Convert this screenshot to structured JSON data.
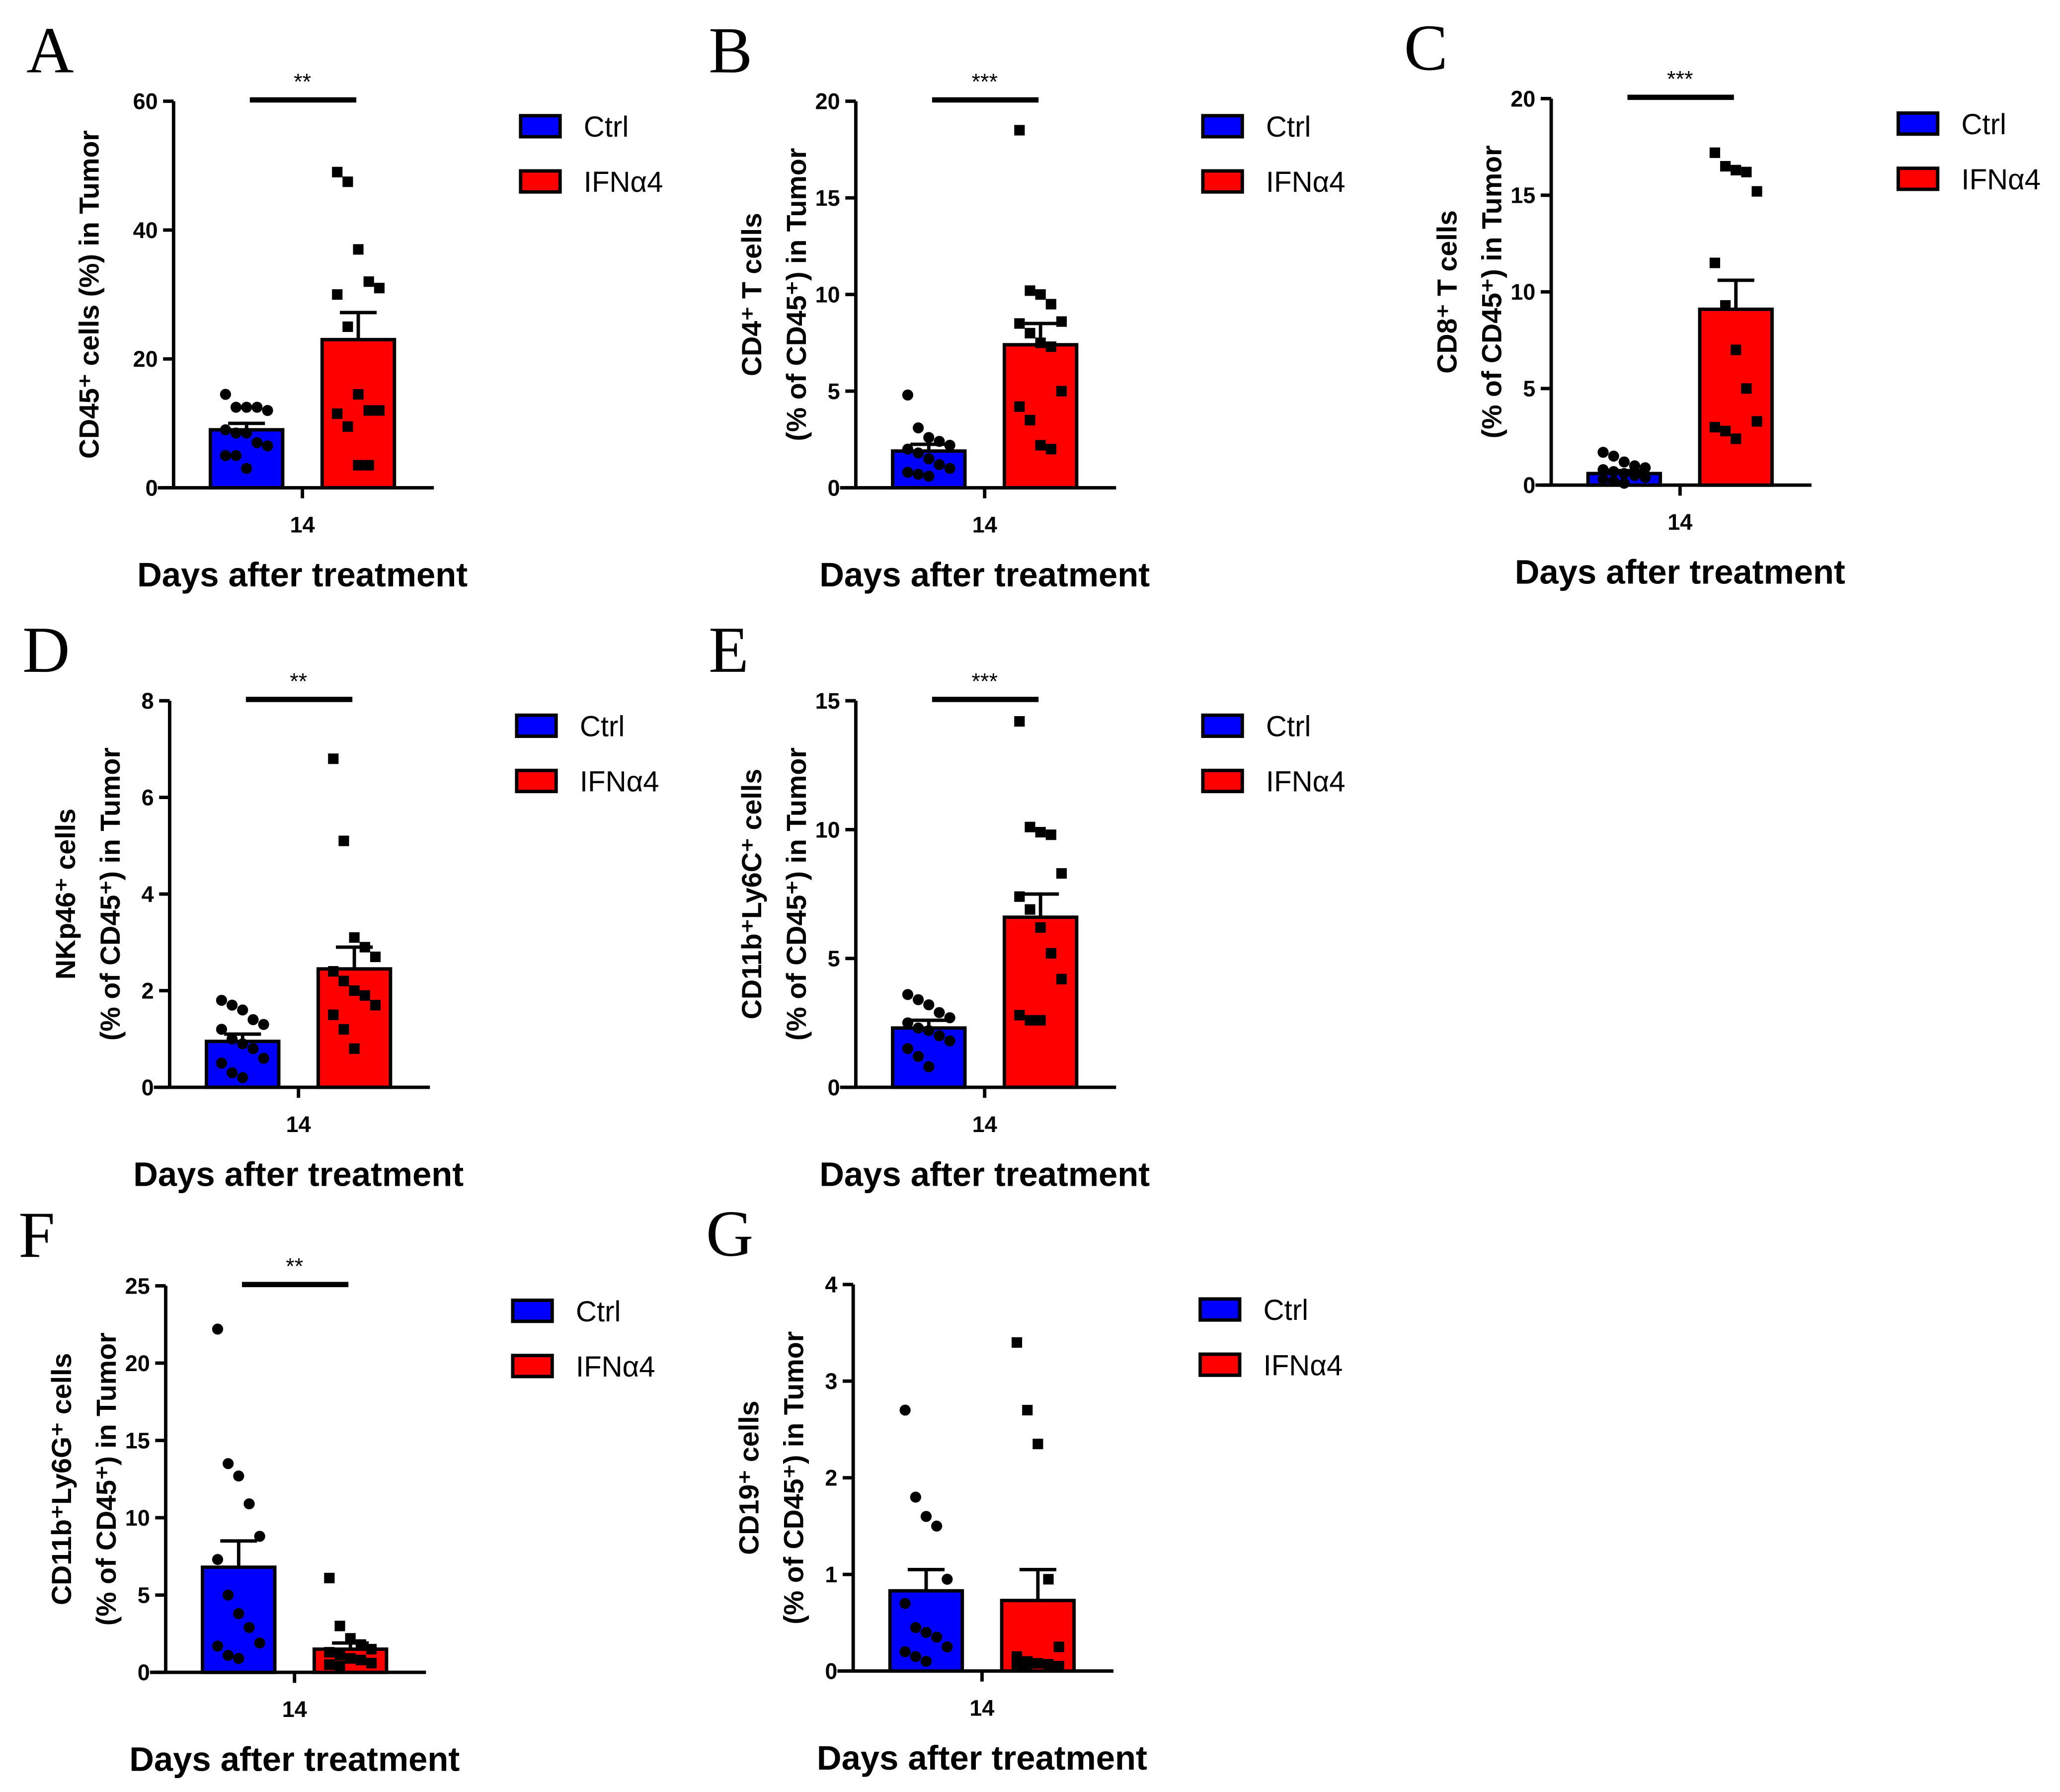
{
  "chart_data": [
    {
      "type": "bar",
      "panel": "A",
      "ylabel_lines": [
        "CD45⁺ cells (%) in Tumor"
      ],
      "xlabel": "Days after treatment",
      "categories": [
        "14"
      ],
      "ylim": [
        0,
        60
      ],
      "yticks": [
        0,
        20,
        40,
        60
      ],
      "significance": "**",
      "legend": [
        "Ctrl",
        "IFNα4"
      ],
      "legend_position": "right",
      "series": [
        {
          "name": "Ctrl",
          "color": "#0000ff",
          "mean": 9,
          "sem": 1,
          "points": [
            14.5,
            12.5,
            12.5,
            12.5,
            12,
            9,
            8.5,
            8.5,
            7,
            6.5,
            5,
            5,
            3
          ]
        },
        {
          "name": "IFNα4",
          "color": "#ff0000",
          "mean": 23,
          "sem": 4.2,
          "points": [
            49,
            47.5,
            37,
            32,
            31,
            30,
            25,
            14.5,
            12,
            12,
            11.5,
            9.5,
            3.5,
            3.5
          ]
        }
      ]
    },
    {
      "type": "bar",
      "panel": "B",
      "ylabel_lines": [
        "CD4⁺ T cells",
        "(% of CD45⁺) in Tumor"
      ],
      "xlabel": "Days after treatment",
      "categories": [
        "14"
      ],
      "ylim": [
        0,
        20
      ],
      "yticks": [
        0,
        5,
        10,
        15,
        20
      ],
      "significance": "***",
      "legend": [
        "Ctrl",
        "IFNα4"
      ],
      "legend_position": "right",
      "series": [
        {
          "name": "Ctrl",
          "color": "#0000ff",
          "mean": 1.9,
          "sem": 0.35,
          "points": [
            4.8,
            3.1,
            2.6,
            2.4,
            2.2,
            2,
            1.8,
            1.5,
            1.2,
            1,
            0.8,
            0.7,
            0.6
          ]
        },
        {
          "name": "IFNα4",
          "color": "#ff0000",
          "mean": 7.4,
          "sem": 1.1,
          "points": [
            18.5,
            10.2,
            10,
            9.5,
            8.6,
            8.5,
            8,
            7.5,
            7.3,
            5,
            4.2,
            3.5,
            2.2,
            2
          ]
        }
      ]
    },
    {
      "type": "bar",
      "panel": "C",
      "ylabel_lines": [
        "CD8⁺ T cells",
        "(% of CD45⁺) in Tumor"
      ],
      "xlabel": "Days after treatment",
      "categories": [
        "14"
      ],
      "ylim": [
        0,
        20
      ],
      "yticks": [
        0,
        5,
        10,
        15,
        20
      ],
      "significance": "***",
      "legend": [
        "Ctrl",
        "IFNα4"
      ],
      "legend_position": "right",
      "series": [
        {
          "name": "Ctrl",
          "color": "#0000ff",
          "mean": 0.6,
          "sem": 0.15,
          "points": [
            1.7,
            1.5,
            1.2,
            1,
            0.9,
            0.8,
            0.7,
            0.6,
            0.5,
            0.4,
            0.3,
            0.2,
            0.1
          ]
        },
        {
          "name": "IFNα4",
          "color": "#ff0000",
          "mean": 9.1,
          "sem": 1.5,
          "points": [
            17.2,
            16.5,
            16.3,
            16.2,
            15.2,
            11.5,
            9.3,
            7,
            5,
            3.3,
            3,
            2.8,
            2.4
          ]
        }
      ]
    },
    {
      "type": "bar",
      "panel": "D",
      "ylabel_lines": [
        "NKp46⁺ cells",
        "(% of CD45⁺) in Tumor"
      ],
      "xlabel": "Days after treatment",
      "categories": [
        "14"
      ],
      "ylim": [
        0,
        8
      ],
      "yticks": [
        0,
        2,
        4,
        6,
        8
      ],
      "significance": "**",
      "legend": [
        "Ctrl",
        "IFNα4"
      ],
      "legend_position": "right",
      "series": [
        {
          "name": "Ctrl",
          "color": "#0000ff",
          "mean": 0.95,
          "sem": 0.15,
          "points": [
            1.8,
            1.7,
            1.6,
            1.4,
            1.3,
            1.2,
            1,
            0.9,
            0.8,
            0.6,
            0.5,
            0.3,
            0.2
          ]
        },
        {
          "name": "IFNα4",
          "color": "#ff0000",
          "mean": 2.45,
          "sem": 0.45,
          "points": [
            6.8,
            5.1,
            3.1,
            2.9,
            2.7,
            2.4,
            2.2,
            2,
            1.9,
            1.7,
            1.5,
            1.2,
            0.8
          ]
        }
      ]
    },
    {
      "type": "bar",
      "panel": "E",
      "ylabel_lines": [
        "CD11b⁺Ly6C⁺ cells",
        "(% of CD45⁺) in Tumor"
      ],
      "xlabel": "Days after treatment",
      "categories": [
        "14"
      ],
      "ylim": [
        0,
        15
      ],
      "yticks": [
        0,
        5,
        10,
        15
      ],
      "significance": "***",
      "legend": [
        "Ctrl",
        "IFNα4"
      ],
      "legend_position": "right",
      "series": [
        {
          "name": "Ctrl",
          "color": "#0000ff",
          "mean": 2.3,
          "sem": 0.3,
          "points": [
            3.6,
            3.4,
            3.2,
            2.9,
            2.7,
            2.5,
            2.3,
            2.2,
            2,
            1.8,
            1.5,
            1.2,
            0.8
          ]
        },
        {
          "name": "IFNα4",
          "color": "#ff0000",
          "mean": 6.6,
          "sem": 0.9,
          "points": [
            14.2,
            10.1,
            9.9,
            9.8,
            8.3,
            7.4,
            6.9,
            6.2,
            5.2,
            4.2,
            2.8,
            2.6,
            2.6
          ]
        }
      ]
    },
    {
      "type": "bar",
      "panel": "F",
      "ylabel_lines": [
        "CD11b⁺Ly6G⁺ cells",
        "(% of CD45⁺) in Tumor"
      ],
      "xlabel": "Days after treatment",
      "categories": [
        "14"
      ],
      "ylim": [
        0,
        25
      ],
      "yticks": [
        0,
        5,
        10,
        15,
        20,
        25
      ],
      "significance": "**",
      "legend": [
        "Ctrl",
        "IFNα4"
      ],
      "legend_position": "right",
      "series": [
        {
          "name": "Ctrl",
          "color": "#0000ff",
          "mean": 6.8,
          "sem": 1.7,
          "points": [
            22.2,
            13.5,
            12.7,
            10.9,
            8.8,
            7.3,
            5,
            3.8,
            2.9,
            1.9,
            1.7,
            1.1,
            0.9
          ]
        },
        {
          "name": "IFNα4",
          "color": "#ff0000",
          "mean": 1.5,
          "sem": 0.4,
          "points": [
            6.1,
            3,
            2.2,
            1.8,
            1.5,
            1.3,
            1.1,
            0.9,
            0.8,
            0.6,
            0.5,
            0.4
          ]
        }
      ]
    },
    {
      "type": "bar",
      "panel": "G",
      "ylabel_lines": [
        "CD19⁺ cells",
        "(% of CD45⁺) in Tumor"
      ],
      "xlabel": "Days after treatment",
      "categories": [
        "14"
      ],
      "ylim": [
        0,
        4
      ],
      "yticks": [
        0,
        1,
        2,
        3,
        4
      ],
      "significance": "",
      "legend": [
        "Ctrl",
        "IFNα4"
      ],
      "legend_position": "right",
      "series": [
        {
          "name": "Ctrl",
          "color": "#0000ff",
          "mean": 0.83,
          "sem": 0.22,
          "points": [
            2.7,
            1.8,
            1.6,
            1.5,
            0.95,
            0.7,
            0.45,
            0.4,
            0.35,
            0.25,
            0.2,
            0.15,
            0.1
          ]
        },
        {
          "name": "IFNα4",
          "color": "#ff0000",
          "mean": 0.73,
          "sem": 0.32,
          "points": [
            3.4,
            2.7,
            2.35,
            0.95,
            0.25,
            0.15,
            0.1,
            0.08,
            0.07,
            0.05,
            0.05,
            0.05
          ]
        }
      ]
    }
  ]
}
